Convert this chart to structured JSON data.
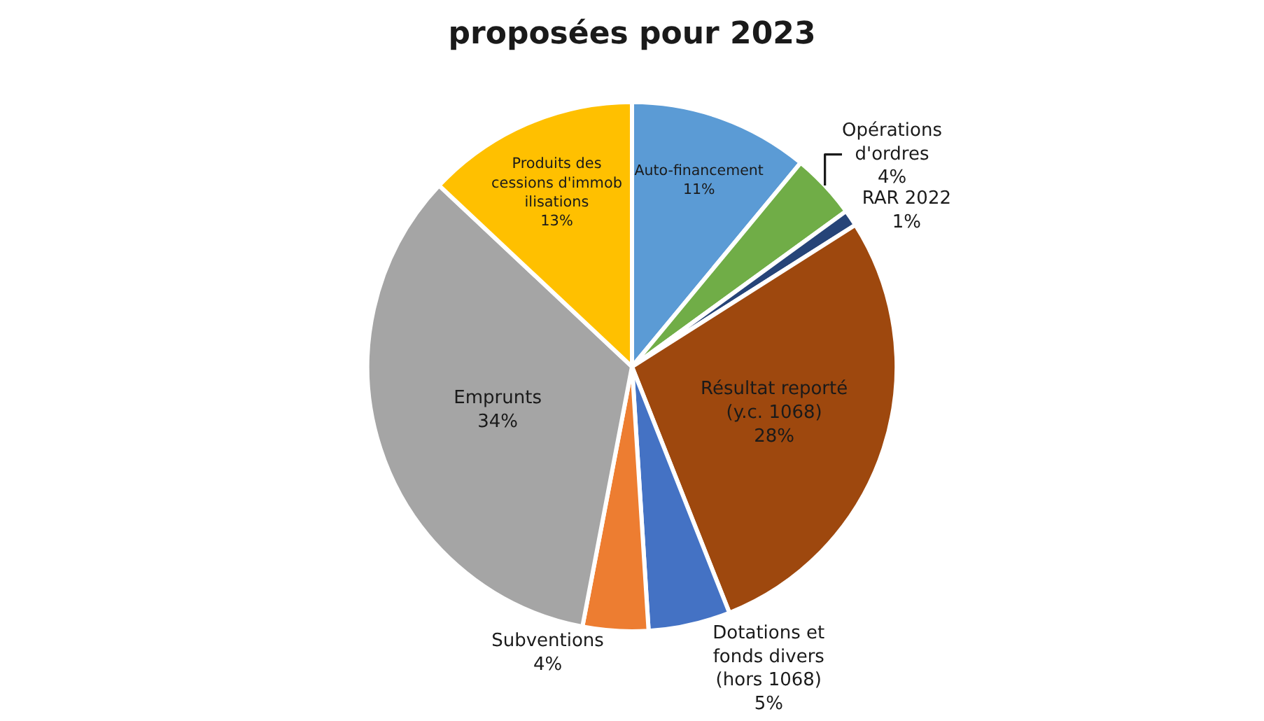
{
  "chart_data": {
    "type": "pie",
    "title": "proposées pour 2023",
    "categories": [
      "Auto-financement",
      "Opérations d'ordres",
      "RAR 2022",
      "Résultat reporté (y.c. 1068)",
      "Dotations et fonds divers (hors 1068)",
      "Subventions",
      "Emprunts",
      "Produits des cessions d'immobilisations"
    ],
    "values": [
      11,
      4,
      1,
      28,
      5,
      4,
      34,
      13
    ],
    "value_labels": [
      "11%",
      "4%",
      "1%",
      "28%",
      "5%",
      "4%",
      "34%",
      "13%"
    ],
    "colors": [
      "#5b9bd5",
      "#70ad47",
      "#264478",
      "#9e480e",
      "#4472c4",
      "#ed7d31",
      "#a5a5a5",
      "#ffc000"
    ],
    "legend": false
  }
}
